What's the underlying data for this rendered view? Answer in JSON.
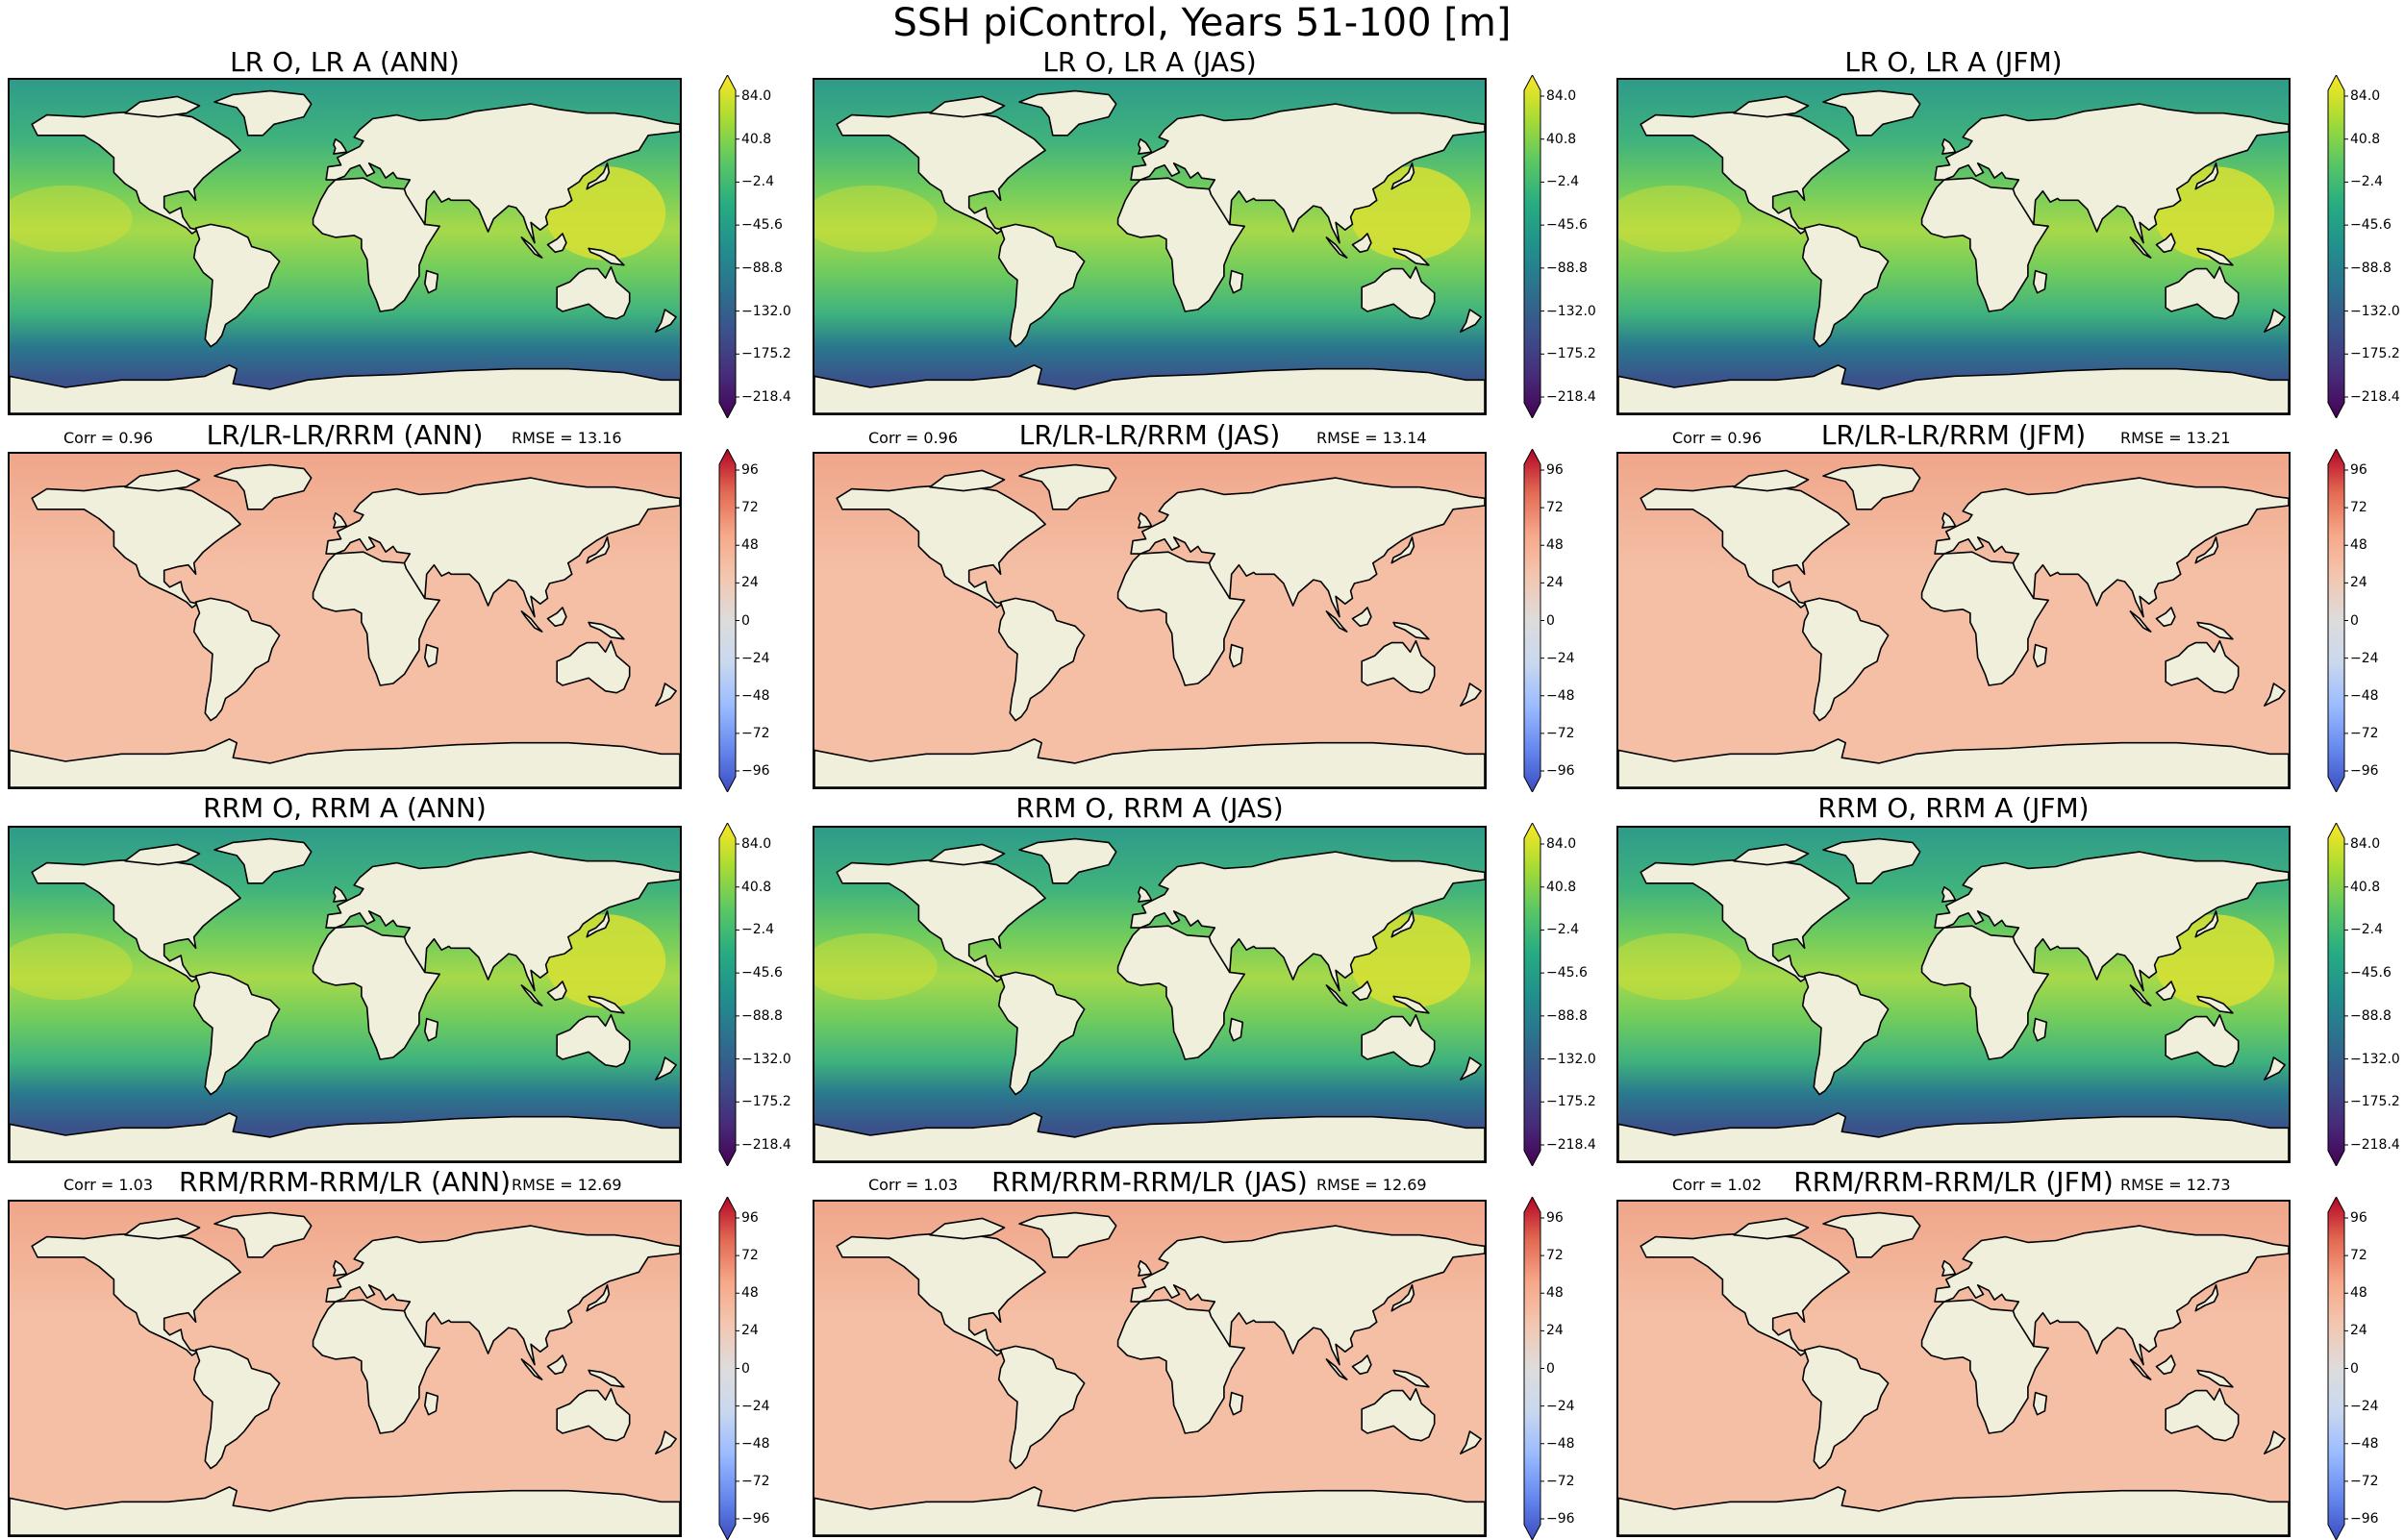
{
  "figure": {
    "title": "SSH piControl, Years 51-100 [m]"
  },
  "colorbars": {
    "field": {
      "colors": [
        "#440154",
        "#472c7a",
        "#3b518b",
        "#2c718e",
        "#21908d",
        "#27ad81",
        "#5cc863",
        "#aadc32",
        "#fde725"
      ],
      "ticks": [
        "84.0",
        "40.8",
        "−2.4",
        "−45.6",
        "−88.8",
        "−132.0",
        "−175.2",
        "−218.4"
      ],
      "extend": "both"
    },
    "diff": {
      "colors": [
        "#3b4cc0",
        "#6688ee",
        "#9abbff",
        "#c9d8ef",
        "#dddcdc",
        "#f3c7b1",
        "#f7a889",
        "#e26952",
        "#b40426"
      ],
      "ticks": [
        "96",
        "72",
        "48",
        "24",
        "0",
        "−24",
        "−48",
        "−72",
        "−96"
      ],
      "extend": "both"
    }
  },
  "rows": [
    {
      "kind": "field",
      "panels": [
        {
          "title": "LR O, LR A (ANN)",
          "corr": "",
          "rmse": ""
        },
        {
          "title": "LR O, LR A (JAS)",
          "corr": "",
          "rmse": ""
        },
        {
          "title": "LR O, LR A (JFM)",
          "corr": "",
          "rmse": ""
        }
      ]
    },
    {
      "kind": "diff",
      "panels": [
        {
          "title": "LR/LR-LR/RRM (ANN)",
          "corr": "Corr = 0.96",
          "rmse": "RMSE = 13.16"
        },
        {
          "title": "LR/LR-LR/RRM (JAS)",
          "corr": "Corr = 0.96",
          "rmse": "RMSE = 13.14"
        },
        {
          "title": "LR/LR-LR/RRM (JFM)",
          "corr": "Corr = 0.96",
          "rmse": "RMSE = 13.21"
        }
      ]
    },
    {
      "kind": "field",
      "panels": [
        {
          "title": "RRM O, RRM A (ANN)",
          "corr": "",
          "rmse": ""
        },
        {
          "title": "RRM O, RRM A (JAS)",
          "corr": "",
          "rmse": ""
        },
        {
          "title": "RRM O, RRM A (JFM)",
          "corr": "",
          "rmse": ""
        }
      ]
    },
    {
      "kind": "diff",
      "panels": [
        {
          "title": "RRM/RRM-RRM/LR (ANN)",
          "corr": "Corr = 1.03",
          "rmse": "RMSE = 12.69"
        },
        {
          "title": "RRM/RRM-RRM/LR (JAS)",
          "corr": "Corr = 1.03",
          "rmse": "RMSE = 12.69"
        },
        {
          "title": "RRM/RRM-RRM/LR (JFM)",
          "corr": "Corr = 1.02",
          "rmse": "RMSE = 12.73"
        }
      ]
    }
  ],
  "map_style": {
    "land_color": "#efefdc",
    "coast_color": "#000000",
    "antarctic_color": "#ffffff",
    "field_ocean_bands": [
      "#2e9b8a",
      "#3fb27d",
      "#6ecb5e",
      "#a7d94a",
      "#6ecb5e",
      "#3fb27d",
      "#2a788e",
      "#3b528b"
    ],
    "field_warm_pool": "#d7e034",
    "diff_ocean": "#f4bfa5",
    "diff_accent": "#f0a68a"
  }
}
